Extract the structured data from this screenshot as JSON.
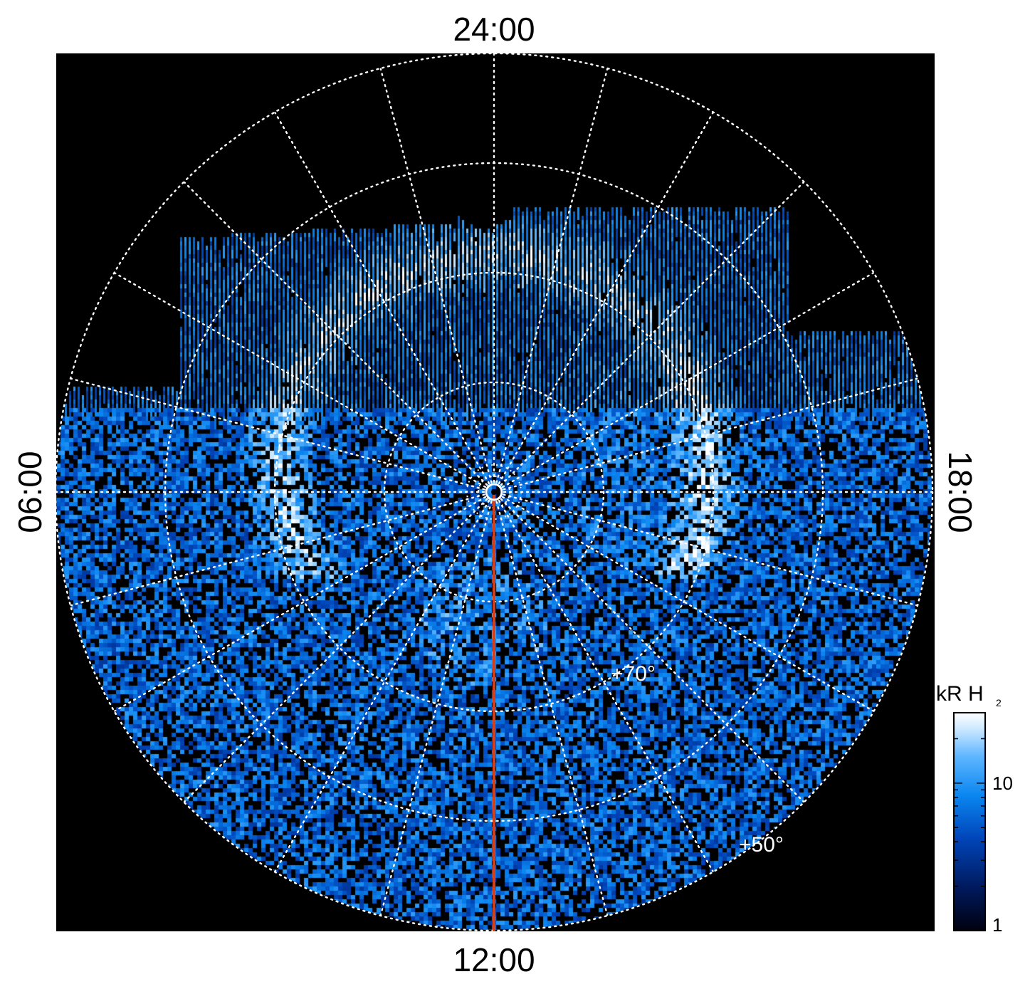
{
  "image": {
    "local_time_labels": {
      "top": "24:00",
      "bottom": "12:00",
      "left": "06:00",
      "right": "18:00"
    },
    "latitude_labels": [
      "+70°",
      "+50°"
    ],
    "colorbar": {
      "title_main": "kR H",
      "title_sub": "2",
      "tick_labels": [
        "10",
        "1"
      ],
      "colors": [
        "#000010",
        "#001a5e",
        "#0044b8",
        "#0a86f0",
        "#5fb6ff",
        "#cfeaff",
        "#ffffff"
      ]
    },
    "colors": {
      "background": "#000000",
      "grid": "#ffffff",
      "meridian_line": "#d2401c",
      "emission_dark": "#001a5e",
      "emission_mid": "#0a86f0",
      "emission_bright": "#cfeaff"
    }
  }
}
